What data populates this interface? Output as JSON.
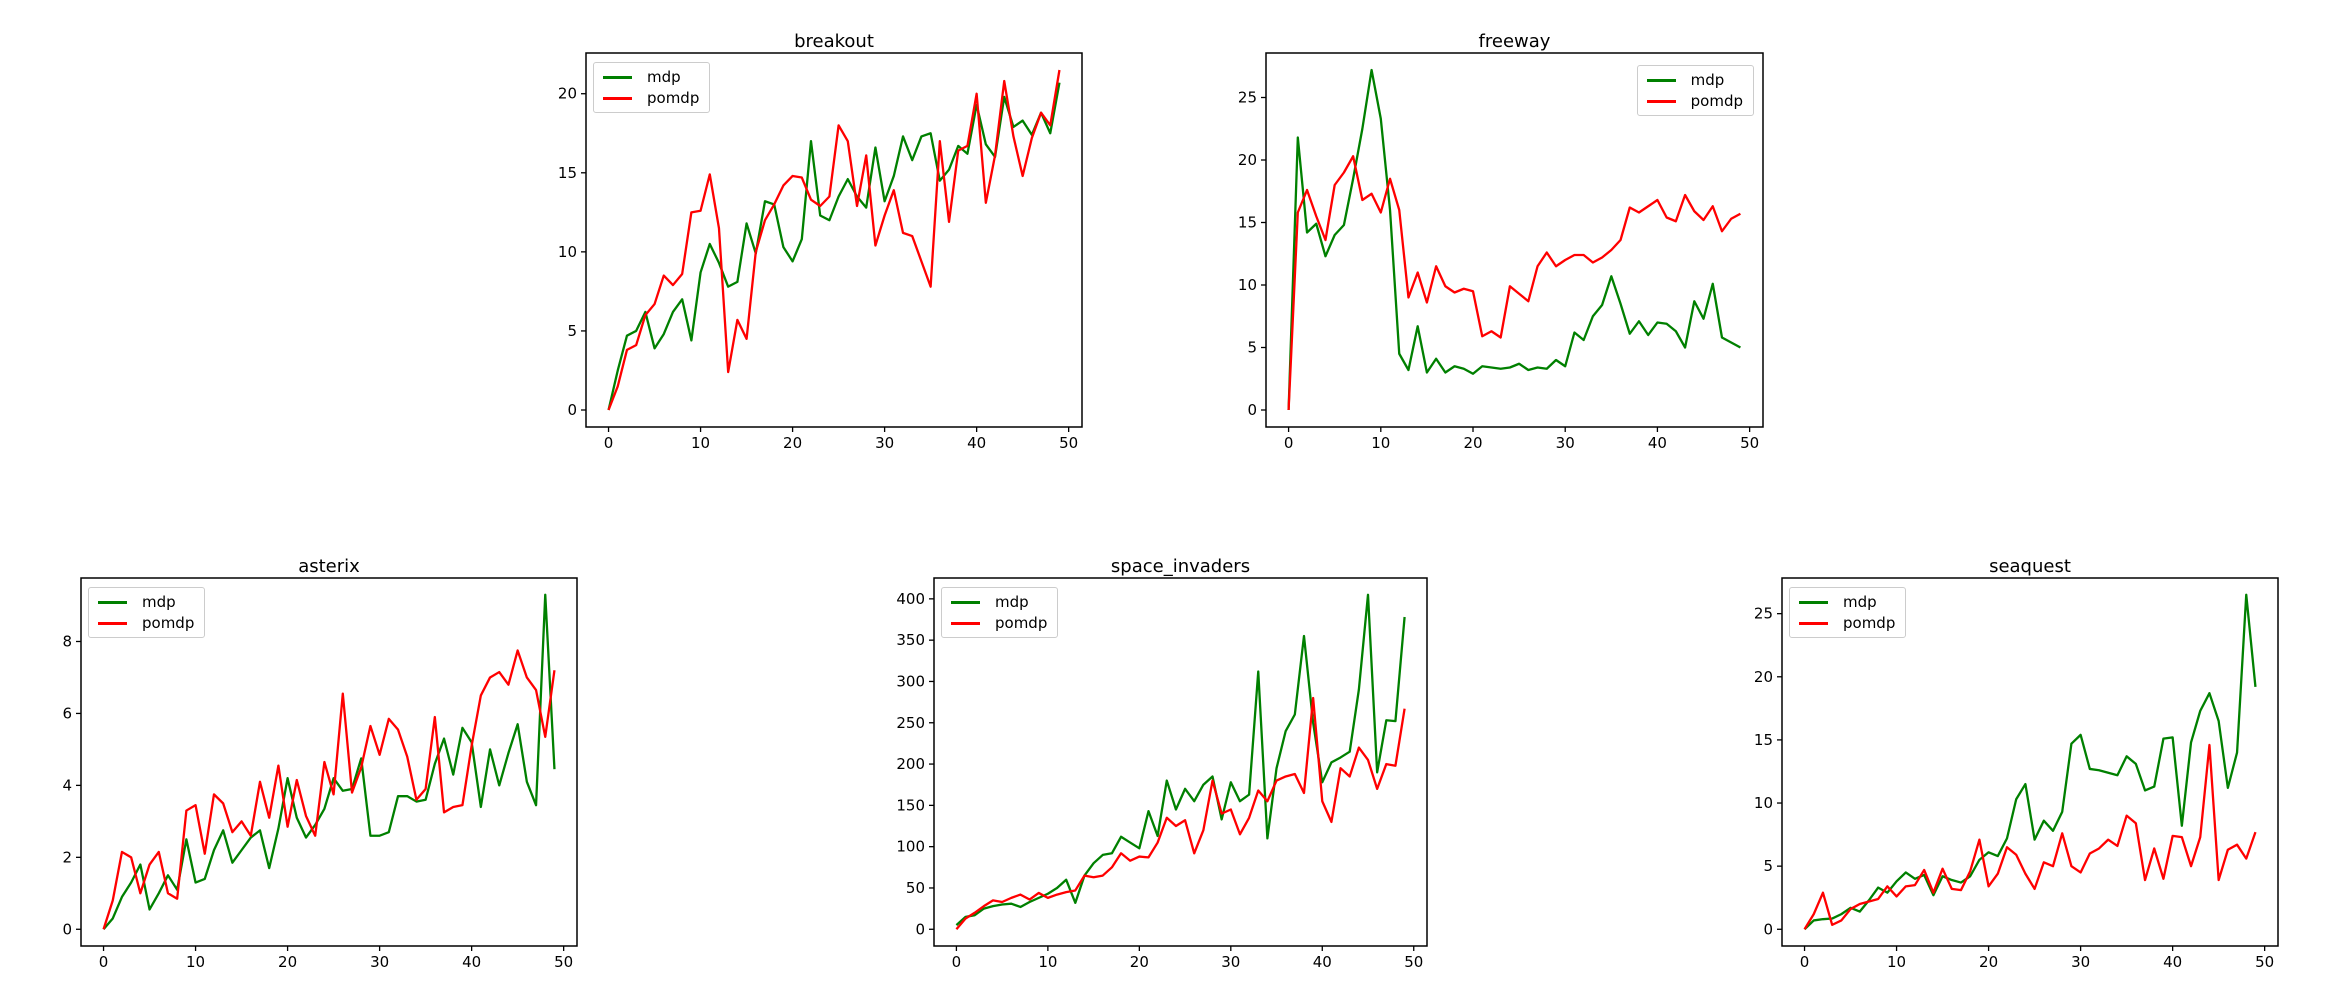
{
  "figure": {
    "background": "#ffffff",
    "text_color": "#000000",
    "axis_color": "#000000"
  },
  "chart_data": {
    "type": "line",
    "legend_entries": [
      "mdp",
      "pomdp"
    ],
    "series_colors": {
      "mdp": "#008000",
      "pomdp": "#ff0000"
    },
    "shared_x": [
      0,
      1,
      2,
      3,
      4,
      5,
      6,
      7,
      8,
      9,
      10,
      11,
      12,
      13,
      14,
      15,
      16,
      17,
      18,
      19,
      20,
      21,
      22,
      23,
      24,
      25,
      26,
      27,
      28,
      29,
      30,
      31,
      32,
      33,
      34,
      35,
      36,
      37,
      38,
      39,
      40,
      41,
      42,
      43,
      44,
      45,
      46,
      47,
      48,
      49
    ],
    "charts": [
      {
        "title": "breakout",
        "legend": {
          "position": "upper-left"
        },
        "xlim": [
          0,
          49
        ],
        "x_ticks": [
          0,
          10,
          20,
          30,
          40,
          50
        ],
        "y_ticks": [
          0,
          5,
          10,
          15,
          20
        ],
        "series": [
          {
            "name": "mdp",
            "color": "#008000",
            "values": [
              0.0,
              2.5,
              4.7,
              5.0,
              6.2,
              3.9,
              4.8,
              6.2,
              7.0,
              4.4,
              8.7,
              10.5,
              9.3,
              7.8,
              8.1,
              11.8,
              9.9,
              13.2,
              13.0,
              10.3,
              9.4,
              10.8,
              17.0,
              12.3,
              12.0,
              13.5,
              14.6,
              13.5,
              12.8,
              16.6,
              13.2,
              14.8,
              17.3,
              15.8,
              17.3,
              17.5,
              14.5,
              15.2,
              16.7,
              16.2,
              19.3,
              16.8,
              16.0,
              19.8,
              17.9,
              18.3,
              17.4,
              18.8,
              17.5,
              20.7
            ]
          },
          {
            "name": "pomdp",
            "color": "#ff0000",
            "values": [
              0.0,
              1.5,
              3.8,
              4.1,
              6.0,
              6.7,
              8.5,
              7.9,
              8.6,
              12.5,
              12.6,
              14.9,
              11.5,
              2.4,
              5.7,
              4.5,
              10.0,
              12.0,
              13.0,
              14.2,
              14.8,
              14.7,
              13.3,
              12.9,
              13.5,
              18.0,
              17.0,
              12.9,
              16.1,
              10.4,
              12.3,
              13.9,
              11.2,
              11.0,
              9.4,
              7.8,
              17.0,
              11.9,
              16.4,
              16.7,
              20.0,
              13.1,
              16.1,
              20.8,
              17.3,
              14.8,
              17.2,
              18.8,
              18.0,
              21.5
            ]
          }
        ]
      },
      {
        "title": "freeway",
        "legend": {
          "position": "upper-right"
        },
        "xlim": [
          0,
          49
        ],
        "x_ticks": [
          0,
          10,
          20,
          30,
          40,
          50
        ],
        "y_ticks": [
          0,
          5,
          10,
          15,
          20,
          25
        ],
        "series": [
          {
            "name": "mdp",
            "color": "#008000",
            "values": [
              0.0,
              21.8,
              14.2,
              14.9,
              12.3,
              14.0,
              14.8,
              18.5,
              22.5,
              27.2,
              23.3,
              16.0,
              4.5,
              3.2,
              6.7,
              3.0,
              4.1,
              3.0,
              3.5,
              3.3,
              2.9,
              3.5,
              3.4,
              3.3,
              3.4,
              3.7,
              3.2,
              3.4,
              3.3,
              4.0,
              3.5,
              6.2,
              5.6,
              7.5,
              8.4,
              10.7,
              8.5,
              6.1,
              7.1,
              6.0,
              7.0,
              6.9,
              6.3,
              5.0,
              8.7,
              7.3,
              10.1,
              5.8,
              5.4,
              5.0
            ]
          },
          {
            "name": "pomdp",
            "color": "#ff0000",
            "values": [
              0.0,
              15.8,
              17.6,
              15.5,
              13.6,
              18.0,
              19.0,
              20.3,
              16.8,
              17.3,
              15.8,
              18.5,
              16.0,
              9.0,
              11.0,
              8.6,
              11.5,
              9.9,
              9.4,
              9.7,
              9.5,
              5.9,
              6.3,
              5.8,
              9.9,
              9.3,
              8.7,
              11.5,
              12.6,
              11.5,
              12.0,
              12.4,
              12.4,
              11.8,
              12.2,
              12.8,
              13.6,
              16.2,
              15.8,
              16.3,
              16.8,
              15.4,
              15.1,
              17.2,
              15.9,
              15.2,
              16.3,
              14.3,
              15.3,
              15.7
            ]
          }
        ]
      },
      {
        "title": "asterix",
        "legend": {
          "position": "upper-left"
        },
        "xlim": [
          0,
          49
        ],
        "x_ticks": [
          0,
          10,
          20,
          30,
          40,
          50
        ],
        "y_ticks": [
          0,
          2,
          4,
          6,
          8
        ],
        "series": [
          {
            "name": "mdp",
            "color": "#008000",
            "values": [
              0.0,
              0.3,
              0.9,
              1.3,
              1.8,
              0.55,
              1.0,
              1.5,
              1.1,
              2.5,
              1.3,
              1.4,
              2.2,
              2.75,
              1.85,
              2.2,
              2.55,
              2.75,
              1.7,
              2.8,
              4.2,
              3.1,
              2.55,
              2.9,
              3.35,
              4.2,
              3.85,
              3.9,
              4.75,
              2.6,
              2.6,
              2.7,
              3.7,
              3.7,
              3.55,
              3.6,
              4.6,
              5.3,
              4.3,
              5.6,
              5.2,
              3.4,
              5.0,
              4.0,
              4.9,
              5.7,
              4.1,
              3.45,
              9.3,
              4.45
            ]
          },
          {
            "name": "pomdp",
            "color": "#ff0000",
            "values": [
              0.0,
              0.8,
              2.15,
              2.0,
              1.0,
              1.8,
              2.15,
              1.0,
              0.85,
              3.3,
              3.45,
              2.1,
              3.75,
              3.5,
              2.7,
              3.0,
              2.6,
              4.1,
              3.1,
              4.55,
              2.85,
              4.15,
              3.15,
              2.6,
              4.65,
              3.75,
              6.55,
              3.8,
              4.5,
              5.65,
              4.85,
              5.85,
              5.55,
              4.8,
              3.6,
              3.9,
              5.9,
              3.25,
              3.4,
              3.45,
              5.1,
              6.5,
              7.0,
              7.15,
              6.8,
              7.75,
              7.0,
              6.65,
              5.35,
              7.2
            ]
          }
        ]
      },
      {
        "title": "space_invaders",
        "legend": {
          "position": "upper-left"
        },
        "xlim": [
          0,
          49
        ],
        "x_ticks": [
          0,
          10,
          20,
          30,
          40,
          50
        ],
        "y_ticks": [
          0,
          50,
          100,
          150,
          200,
          250,
          300,
          350,
          400
        ],
        "series": [
          {
            "name": "mdp",
            "color": "#008000",
            "values": [
              5,
              15,
              17,
              25,
              28,
              30,
              31,
              27,
              33,
              38,
              43,
              50,
              60,
              32,
              65,
              80,
              90,
              92,
              112,
              105,
              98,
              143,
              113,
              180,
              145,
              170,
              155,
              175,
              185,
              133,
              178,
              155,
              163,
              312,
              110,
              195,
              240,
              260,
              355,
              250,
              178,
              202,
              208,
              215,
              290,
              405,
              190,
              253,
              252,
              378
            ]
          },
          {
            "name": "pomdp",
            "color": "#ff0000",
            "values": [
              0,
              13,
              20,
              28,
              35,
              33,
              38,
              42,
              36,
              44,
              38,
              42,
              45,
              47,
              65,
              63,
              65,
              75,
              92,
              83,
              88,
              87,
              105,
              135,
              125,
              132,
              92,
              120,
              180,
              140,
              145,
              115,
              135,
              168,
              155,
              180,
              185,
              188,
              165,
              280,
              155,
              130,
              195,
              185,
              220,
              205,
              170,
              200,
              198,
              267
            ]
          }
        ]
      },
      {
        "title": "seaquest",
        "legend": {
          "position": "upper-left"
        },
        "xlim": [
          0,
          49
        ],
        "x_ticks": [
          0,
          10,
          20,
          30,
          40,
          50
        ],
        "y_ticks": [
          0,
          5,
          10,
          15,
          20,
          25
        ],
        "series": [
          {
            "name": "mdp",
            "color": "#008000",
            "values": [
              0.0,
              0.7,
              0.8,
              0.85,
              1.2,
              1.7,
              1.4,
              2.3,
              3.3,
              2.9,
              3.8,
              4.5,
              4.0,
              4.3,
              2.7,
              4.2,
              3.9,
              3.7,
              4.2,
              5.5,
              6.1,
              5.8,
              7.2,
              10.3,
              11.5,
              7.1,
              8.6,
              7.8,
              9.3,
              14.7,
              15.4,
              12.7,
              12.6,
              12.4,
              12.2,
              13.7,
              13.1,
              11.0,
              11.3,
              15.1,
              15.2,
              8.2,
              14.8,
              17.3,
              18.7,
              16.5,
              11.2,
              14.0,
              26.5,
              19.2
            ]
          },
          {
            "name": "pomdp",
            "color": "#ff0000",
            "values": [
              0.0,
              1.2,
              2.9,
              0.35,
              0.7,
              1.6,
              2.0,
              2.2,
              2.4,
              3.4,
              2.6,
              3.4,
              3.5,
              4.7,
              2.9,
              4.8,
              3.2,
              3.1,
              4.6,
              7.1,
              3.4,
              4.4,
              6.5,
              5.9,
              4.4,
              3.2,
              5.3,
              5.0,
              7.6,
              5.0,
              4.5,
              6.0,
              6.4,
              7.1,
              6.6,
              9.0,
              8.4,
              3.9,
              6.4,
              4.0,
              7.4,
              7.3,
              5.0,
              7.3,
              14.6,
              3.9,
              6.3,
              6.7,
              5.6,
              7.7
            ]
          }
        ]
      }
    ]
  }
}
